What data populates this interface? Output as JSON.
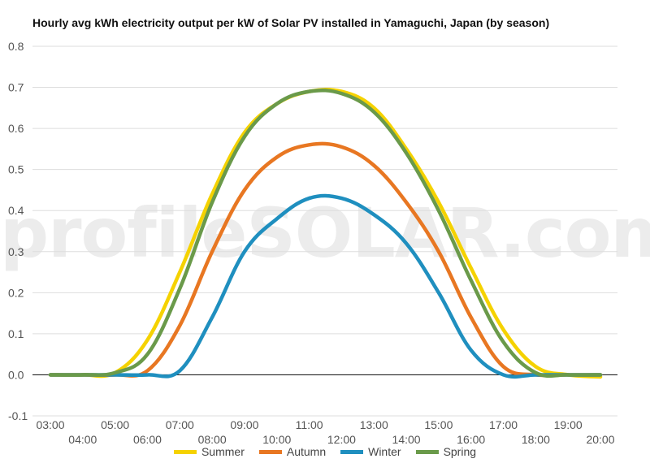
{
  "chart_data": {
    "type": "line",
    "title": "Hourly avg kWh electricity output per kW of Solar PV installed in Yamaguchi, Japan (by season)",
    "watermark": "profileSOLAR.com",
    "xlabel": "",
    "ylabel": "",
    "x": [
      "03:00",
      "04:00",
      "05:00",
      "06:00",
      "07:00",
      "08:00",
      "09:00",
      "10:00",
      "11:00",
      "12:00",
      "13:00",
      "14:00",
      "15:00",
      "16:00",
      "17:00",
      "18:00",
      "19:00",
      "20:00"
    ],
    "ylim": [
      -0.1,
      0.8
    ],
    "yticks": [
      "-0.1",
      "0.0",
      "0.1",
      "0.2",
      "0.3",
      "0.4",
      "0.5",
      "0.6",
      "0.7",
      "0.8"
    ],
    "grid": true,
    "legend_position": "bottom",
    "series": [
      {
        "name": "Summer",
        "color": "#f5d200",
        "values": [
          0.0,
          0.0,
          0.005,
          0.085,
          0.25,
          0.44,
          0.59,
          0.66,
          0.69,
          0.69,
          0.65,
          0.55,
          0.42,
          0.26,
          0.11,
          0.02,
          0.0,
          -0.005
        ]
      },
      {
        "name": "Autumn",
        "color": "#e87722",
        "values": [
          0.0,
          0.0,
          0.0,
          0.01,
          0.12,
          0.3,
          0.45,
          0.53,
          0.56,
          0.555,
          0.51,
          0.42,
          0.3,
          0.14,
          0.02,
          0.0,
          0.0,
          0.0
        ]
      },
      {
        "name": "Winter",
        "color": "#1f8fbf",
        "values": [
          0.0,
          0.0,
          0.0,
          0.0,
          0.01,
          0.14,
          0.3,
          0.38,
          0.43,
          0.43,
          0.39,
          0.32,
          0.2,
          0.06,
          0.0,
          0.0,
          0.0,
          0.0
        ]
      },
      {
        "name": "Spring",
        "color": "#6a9a4a",
        "values": [
          0.0,
          0.0,
          0.005,
          0.05,
          0.21,
          0.42,
          0.58,
          0.66,
          0.69,
          0.685,
          0.64,
          0.54,
          0.4,
          0.23,
          0.08,
          0.005,
          0.0,
          0.0
        ]
      }
    ]
  }
}
